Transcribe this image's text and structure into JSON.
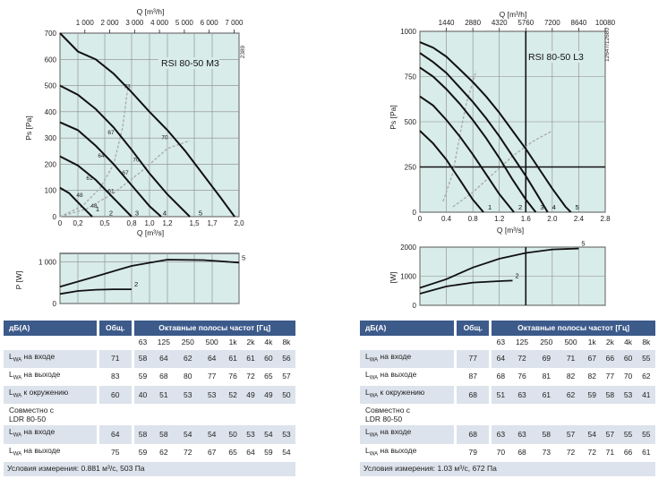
{
  "chart_data": [
    {
      "type": "line",
      "title": "RSI 80-50 M3",
      "side_code": "2389",
      "xlabel": "Q [m³/s]",
      "x2label": "Q [m³/h]",
      "ylabel": "Ps [Pa]",
      "xlim": [
        0,
        2.0
      ],
      "ylim": [
        0,
        700
      ],
      "xticks": [
        0,
        0.2,
        0.5,
        0.8,
        1.0,
        1.2,
        1.5,
        1.7,
        2.0
      ],
      "xtick_labels": [
        "0",
        "0,2",
        "0,5",
        "0,8",
        "1,0",
        "1,2",
        "1,5",
        "1,7",
        "2,0"
      ],
      "x2ticks": [
        1000,
        2000,
        3000,
        4000,
        5000,
        6000,
        7000
      ],
      "x2tick_labels": [
        "1 000",
        "2 000",
        "3 000",
        "4 000",
        "5 000",
        "6 000",
        "7 000"
      ],
      "yticks": [
        0,
        100,
        200,
        300,
        400,
        500,
        600,
        700
      ],
      "grid": true,
      "series": [
        {
          "name": "1",
          "x": [
            0,
            0.1,
            0.2,
            0.3,
            0.36
          ],
          "y": [
            110,
            90,
            55,
            20,
            0
          ]
        },
        {
          "name": "2",
          "x": [
            0,
            0.2,
            0.4,
            0.6,
            0.8
          ],
          "y": [
            230,
            195,
            140,
            70,
            0
          ]
        },
        {
          "name": "3",
          "x": [
            0,
            0.2,
            0.4,
            0.6,
            0.8,
            1.0,
            1.13
          ],
          "y": [
            360,
            330,
            270,
            200,
            120,
            40,
            0
          ]
        },
        {
          "name": "4",
          "x": [
            0,
            0.2,
            0.4,
            0.6,
            0.8,
            1.0,
            1.2,
            1.45
          ],
          "y": [
            500,
            465,
            410,
            340,
            255,
            165,
            85,
            0
          ]
        },
        {
          "name": "5",
          "x": [
            0,
            0.2,
            0.4,
            0.6,
            0.8,
            1.0,
            1.2,
            1.4,
            1.6,
            1.8,
            1.95
          ],
          "y": [
            700,
            630,
            600,
            545,
            475,
            400,
            330,
            250,
            160,
            70,
            0
          ]
        }
      ],
      "efficiency_curves": [
        {
          "x": [
            0,
            0.25,
            0.45,
            0.6,
            0.7,
            0.76
          ],
          "y": [
            0,
            40,
            110,
            200,
            340,
            500
          ]
        },
        {
          "x": [
            0,
            0.3,
            0.6,
            0.9,
            1.2,
            1.45
          ],
          "y": [
            0,
            30,
            90,
            170,
            260,
            290
          ]
        }
      ],
      "efficiency_labels": [
        {
          "text": "73",
          "x": 0.75,
          "y": 490
        },
        {
          "text": "67",
          "x": 0.57,
          "y": 315
        },
        {
          "text": "64",
          "x": 0.46,
          "y": 225
        },
        {
          "text": "61",
          "x": 0.33,
          "y": 140
        },
        {
          "text": "48",
          "x": 0.22,
          "y": 75
        },
        {
          "text": "48",
          "x": 0.38,
          "y": 35
        },
        {
          "text": "61",
          "x": 0.57,
          "y": 90
        },
        {
          "text": "67",
          "x": 0.73,
          "y": 160
        },
        {
          "text": "70",
          "x": 0.85,
          "y": 210
        },
        {
          "text": "70",
          "x": 1.17,
          "y": 295
        }
      ],
      "curve_labels": [
        {
          "text": "1",
          "x": 0.42,
          "y": 20
        },
        {
          "text": "2",
          "x": 0.57,
          "y": 5
        },
        {
          "text": "3",
          "x": 0.86,
          "y": 5
        },
        {
          "text": "4",
          "x": 1.17,
          "y": 5
        },
        {
          "text": "5",
          "x": 1.57,
          "y": 5
        }
      ],
      "power": {
        "ylabel": "P [W]",
        "ylim": [
          0,
          1200
        ],
        "yticks": [
          0,
          1000
        ],
        "ytick_labels": [
          "0",
          "1 000"
        ],
        "series": [
          {
            "name": "5",
            "x": [
              0,
              0.4,
              0.8,
              1.2,
              1.6,
              2.0
            ],
            "y": [
              400,
              650,
              900,
              1050,
              1040,
              980
            ]
          },
          {
            "name": "2",
            "x": [
              0,
              0.2,
              0.4,
              0.6,
              0.8
            ],
            "y": [
              230,
              300,
              330,
              340,
              340
            ]
          }
        ]
      }
    },
    {
      "type": "line",
      "title": "RSI 80-50 L3",
      "side_code": "12647/12680",
      "xlabel": "Q [m³/s]",
      "x2label": "Q [m³/h]",
      "ylabel": "Ps [Pa]",
      "xlim": [
        0,
        2.8
      ],
      "ylim": [
        0,
        1000
      ],
      "xticks": [
        0,
        0.4,
        0.8,
        1.2,
        1.6,
        2.0,
        2.4,
        2.8
      ],
      "xtick_labels": [
        "0",
        "0.4",
        "0.8",
        "1.2",
        "1.6",
        "2.0",
        "2.4",
        "2.8"
      ],
      "x2ticks": [
        1440,
        2880,
        4320,
        5760,
        7200,
        8640,
        10080
      ],
      "x2tick_labels": [
        "1440",
        "2880",
        "4320",
        "5760",
        "7200",
        "8640",
        "10080"
      ],
      "yticks": [
        0,
        250,
        500,
        750,
        1000
      ],
      "grid": true,
      "operating_point": {
        "x": 1.6,
        "y": 250
      },
      "series": [
        {
          "name": "1",
          "x": [
            0,
            0.2,
            0.4,
            0.6,
            0.8,
            0.96
          ],
          "y": [
            450,
            380,
            290,
            180,
            70,
            0
          ]
        },
        {
          "name": "2",
          "x": [
            0,
            0.2,
            0.4,
            0.6,
            0.8,
            1.0,
            1.2,
            1.42
          ],
          "y": [
            640,
            590,
            510,
            420,
            320,
            210,
            100,
            0
          ]
        },
        {
          "name": "3",
          "x": [
            0,
            0.2,
            0.4,
            0.6,
            0.8,
            1.0,
            1.2,
            1.4,
            1.6,
            1.75
          ],
          "y": [
            800,
            750,
            680,
            600,
            510,
            410,
            300,
            180,
            70,
            0
          ]
        },
        {
          "name": "4",
          "x": [
            0,
            0.2,
            0.4,
            0.6,
            0.8,
            1.0,
            1.2,
            1.4,
            1.6,
            1.8,
            1.93
          ],
          "y": [
            880,
            830,
            770,
            690,
            610,
            520,
            420,
            310,
            200,
            80,
            0
          ]
        },
        {
          "name": "5",
          "x": [
            0,
            0.2,
            0.4,
            0.6,
            0.8,
            1.0,
            1.2,
            1.4,
            1.6,
            1.8,
            2.0,
            2.2,
            2.28
          ],
          "y": [
            940,
            910,
            860,
            790,
            720,
            640,
            550,
            450,
            350,
            240,
            130,
            30,
            0
          ]
        }
      ],
      "efficiency_curves": [
        {
          "x": [
            0.35,
            0.5,
            0.6,
            0.7,
            0.8,
            0.85
          ],
          "y": [
            60,
            220,
            420,
            600,
            720,
            780
          ]
        },
        {
          "x": [
            0.5,
            0.8,
            1.1,
            1.4,
            1.7,
            2.0
          ],
          "y": [
            30,
            110,
            210,
            310,
            390,
            450
          ]
        }
      ],
      "power": {
        "ylabel": "[W]",
        "ylim": [
          0,
          2000
        ],
        "yticks": [
          0,
          1000,
          2000
        ],
        "ytick_labels": [
          "0",
          "1000",
          "2000"
        ],
        "series": [
          {
            "name": "5",
            "x": [
              0,
              0.4,
              0.8,
              1.2,
              1.6,
              2.0,
              2.4
            ],
            "y": [
              600,
              900,
              1300,
              1600,
              1800,
              1920,
              1950
            ]
          },
          {
            "name": "2",
            "x": [
              0,
              0.4,
              0.8,
              1.2,
              1.4
            ],
            "y": [
              400,
              650,
              780,
              830,
              850
            ]
          }
        ]
      }
    }
  ],
  "tables": [
    {
      "header": {
        "label": "дБ(A)",
        "total": "Общ.",
        "bands_title": "Октавные полосы частот [Гц]"
      },
      "freqs": [
        "63",
        "125",
        "250",
        "500",
        "1k",
        "2k",
        "4k",
        "8k"
      ],
      "rows": [
        {
          "label_main": "L",
          "label_sub": "WA",
          "label_rest": " на входе",
          "total": "71",
          "values": [
            "58",
            "64",
            "62",
            "64",
            "61",
            "61",
            "60",
            "56"
          ]
        },
        {
          "label_main": "L",
          "label_sub": "WA",
          "label_rest": " на выходе",
          "total": "83",
          "values": [
            "59",
            "68",
            "80",
            "77",
            "76",
            "72",
            "65",
            "57"
          ]
        },
        {
          "label_main": "L",
          "label_sub": "WA",
          "label_rest": " к окружению",
          "total": "60",
          "values": [
            "40",
            "51",
            "53",
            "53",
            "52",
            "49",
            "49",
            "50"
          ]
        }
      ],
      "combined_label_1": "Совместно с",
      "combined_label_2": "LDR 80-50",
      "combined_rows": [
        {
          "label_main": "L",
          "label_sub": "WA",
          "label_rest": " на входе",
          "total": "64",
          "values": [
            "58",
            "58",
            "54",
            "54",
            "50",
            "53",
            "54",
            "53"
          ]
        },
        {
          "label_main": "L",
          "label_sub": "WA",
          "label_rest": " на выходе",
          "total": "75",
          "values": [
            "59",
            "62",
            "72",
            "67",
            "65",
            "64",
            "59",
            "54"
          ]
        }
      ],
      "note": "Условия измерения: 0.881 м³/с, 503 Па"
    },
    {
      "header": {
        "label": "дБ(A)",
        "total": "Общ.",
        "bands_title": "Октавные полосы частот [Гц]"
      },
      "freqs": [
        "63",
        "125",
        "250",
        "500",
        "1k",
        "2k",
        "4k",
        "8k"
      ],
      "rows": [
        {
          "label_main": "L",
          "label_sub": "WA",
          "label_rest": " на входе",
          "total": "77",
          "values": [
            "64",
            "72",
            "69",
            "71",
            "67",
            "66",
            "60",
            "55"
          ]
        },
        {
          "label_main": "L",
          "label_sub": "WA",
          "label_rest": " на выходе",
          "total": "87",
          "values": [
            "68",
            "76",
            "81",
            "82",
            "82",
            "77",
            "70",
            "62"
          ]
        },
        {
          "label_main": "L",
          "label_sub": "WA",
          "label_rest": " к окружению",
          "total": "68",
          "values": [
            "51",
            "63",
            "61",
            "62",
            "59",
            "58",
            "53",
            "41"
          ]
        }
      ],
      "combined_label_1": "Совместно с",
      "combined_label_2": "LDR 80-50",
      "combined_rows": [
        {
          "label_main": "L",
          "label_sub": "WA",
          "label_rest": " на входе",
          "total": "68",
          "values": [
            "63",
            "63",
            "58",
            "57",
            "54",
            "57",
            "55",
            "55"
          ]
        },
        {
          "label_main": "L",
          "label_sub": "WA",
          "label_rest": " на выходе",
          "total": "79",
          "values": [
            "70",
            "68",
            "73",
            "72",
            "72",
            "71",
            "66",
            "61"
          ]
        }
      ],
      "note": "Условия измерения: 1.03 м³/с, 672  Па"
    }
  ]
}
